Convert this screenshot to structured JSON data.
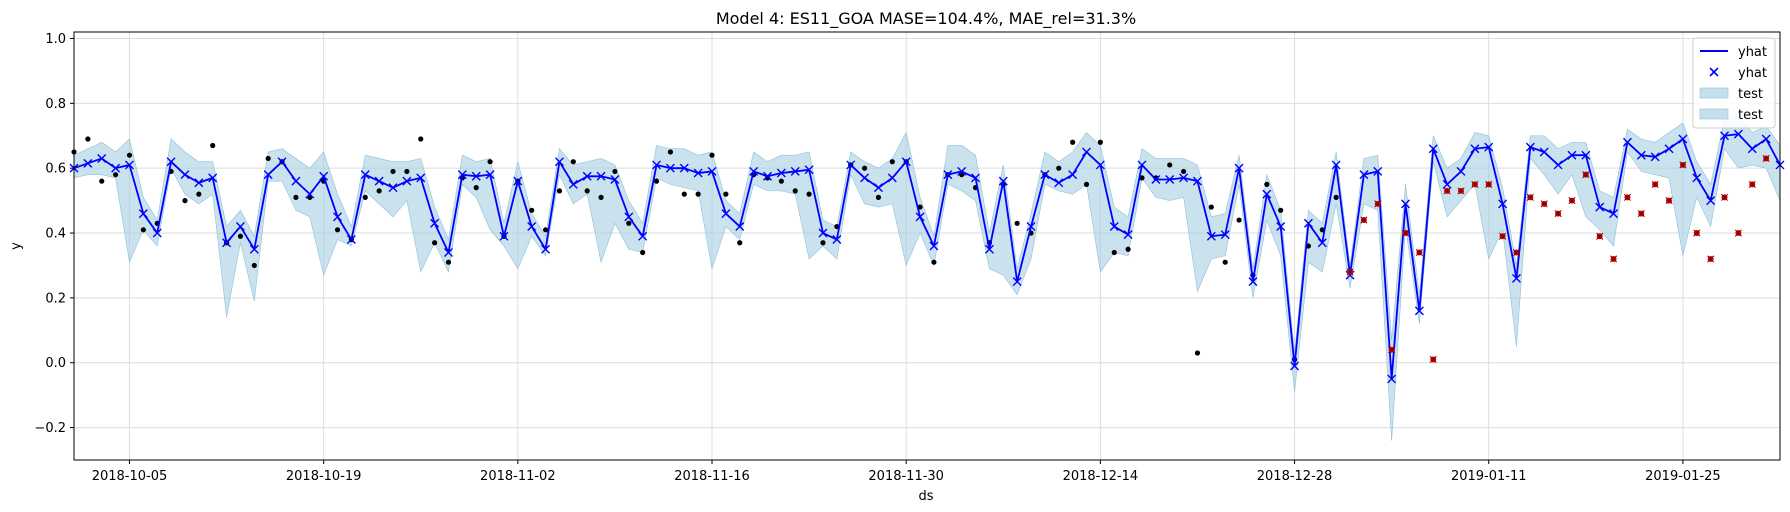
{
  "chart_data": {
    "type": "line",
    "title": "Model 4: ES11_GOA MASE=104.4%, MAE_rel=31.3%",
    "xlabel": "ds",
    "ylabel": "y",
    "x_start": "2018-10-01",
    "x_end": "2019-02-01",
    "ylim": [
      -0.3,
      1.02
    ],
    "yticks": [
      -0.2,
      0.0,
      0.2,
      0.4,
      0.6,
      0.8,
      1.0
    ],
    "ytick_labels": [
      "−0.2",
      "0.0",
      "0.2",
      "0.4",
      "0.6",
      "0.8",
      "1.0"
    ],
    "xticks": [
      "2018-10-05",
      "2018-10-19",
      "2018-11-02",
      "2018-11-16",
      "2018-11-30",
      "2018-12-14",
      "2018-12-28",
      "2019-01-11",
      "2019-01-25"
    ],
    "xtick_labels": [
      "2018-10-05",
      "2018-10-19",
      "2018-11-02",
      "2018-11-16",
      "2018-11-30",
      "2018-12-14",
      "2018-12-28",
      "2019-01-11",
      "2019-01-25"
    ],
    "grid": true,
    "legend_position": "top-right",
    "legend": [
      {
        "label": "yhat",
        "kind": "line",
        "color": "#0000ff"
      },
      {
        "label": "yhat",
        "kind": "marker-x",
        "color": "#0000ff"
      },
      {
        "label": "test",
        "kind": "band",
        "color": "#a6cee3"
      },
      {
        "label": "test",
        "kind": "band",
        "color": "#a6cee3"
      }
    ],
    "colors": {
      "forecast": "#0000ff",
      "band": "#a6cee3",
      "actual": "#000000",
      "test_points": "#cc0000"
    },
    "series": [
      {
        "name": "yhat",
        "type": "line",
        "x": [
          "2018-10-01",
          "2018-10-02",
          "2018-10-03",
          "2018-10-04",
          "2018-10-05",
          "2018-10-06",
          "2018-10-07",
          "2018-10-08",
          "2018-10-09",
          "2018-10-10",
          "2018-10-11",
          "2018-10-12",
          "2018-10-13",
          "2018-10-14",
          "2018-10-15",
          "2018-10-16",
          "2018-10-17",
          "2018-10-18",
          "2018-10-19",
          "2018-10-20",
          "2018-10-21",
          "2018-10-22",
          "2018-10-23",
          "2018-10-24",
          "2018-10-25",
          "2018-10-26",
          "2018-10-27",
          "2018-10-28",
          "2018-10-29",
          "2018-10-30",
          "2018-10-31",
          "2018-11-01",
          "2018-11-02",
          "2018-11-03",
          "2018-11-04",
          "2018-11-05",
          "2018-11-06",
          "2018-11-07",
          "2018-11-08",
          "2018-11-09",
          "2018-11-10",
          "2018-11-11",
          "2018-11-12",
          "2018-11-13",
          "2018-11-14",
          "2018-11-15",
          "2018-11-16",
          "2018-11-17",
          "2018-11-18",
          "2018-11-19",
          "2018-11-20",
          "2018-11-21",
          "2018-11-22",
          "2018-11-23",
          "2018-11-24",
          "2018-11-25",
          "2018-11-26",
          "2018-11-27",
          "2018-11-28",
          "2018-11-29",
          "2018-11-30",
          "2018-12-01",
          "2018-12-02",
          "2018-12-03",
          "2018-12-04",
          "2018-12-05",
          "2018-12-06",
          "2018-12-07",
          "2018-12-08",
          "2018-12-09",
          "2018-12-10",
          "2018-12-11",
          "2018-12-12",
          "2018-12-13",
          "2018-12-14",
          "2018-12-15",
          "2018-12-16",
          "2018-12-17",
          "2018-12-18",
          "2018-12-19",
          "2018-12-20",
          "2018-12-21",
          "2018-12-22",
          "2018-12-23",
          "2018-12-24",
          "2018-12-25",
          "2018-12-26",
          "2018-12-27",
          "2018-12-28",
          "2018-12-29",
          "2018-12-30",
          "2018-12-31",
          "2019-01-01",
          "2019-01-02",
          "2019-01-03",
          "2019-01-04",
          "2019-01-05",
          "2019-01-06",
          "2019-01-07",
          "2019-01-08",
          "2019-01-09",
          "2019-01-10",
          "2019-01-11",
          "2019-01-12",
          "2019-01-13",
          "2019-01-14",
          "2019-01-15",
          "2019-01-16",
          "2019-01-17",
          "2019-01-18",
          "2019-01-19",
          "2019-01-20",
          "2019-01-21",
          "2019-01-22",
          "2019-01-23",
          "2019-01-24",
          "2019-01-25",
          "2019-01-26",
          "2019-01-27",
          "2019-01-28",
          "2019-01-29",
          "2019-01-30",
          "2019-01-31",
          "2019-02-01"
        ],
        "values": [
          0.6,
          0.615,
          0.63,
          0.6,
          0.61,
          0.46,
          0.4,
          0.62,
          0.58,
          0.555,
          0.57,
          0.37,
          0.42,
          0.35,
          0.58,
          0.62,
          0.56,
          0.52,
          0.575,
          0.45,
          0.38,
          0.58,
          0.56,
          0.54,
          0.56,
          0.57,
          0.43,
          0.34,
          0.58,
          0.575,
          0.58,
          0.39,
          0.56,
          0.42,
          0.35,
          0.62,
          0.55,
          0.575,
          0.575,
          0.565,
          0.45,
          0.39,
          0.61,
          0.6,
          0.6,
          0.585,
          0.59,
          0.46,
          0.42,
          0.59,
          0.575,
          0.585,
          0.59,
          0.595,
          0.4,
          0.38,
          0.61,
          0.57,
          0.54,
          0.57,
          0.62,
          0.45,
          0.36,
          0.58,
          0.59,
          0.57,
          0.35,
          0.56,
          0.25,
          0.42,
          0.58,
          0.555,
          0.58,
          0.65,
          0.61,
          0.42,
          0.395,
          0.61,
          0.565,
          0.565,
          0.57,
          0.56,
          0.39,
          0.395,
          0.6,
          0.25,
          0.52,
          0.42,
          -0.01,
          0.43,
          0.37,
          0.61,
          0.27,
          0.58,
          0.59,
          -0.05,
          0.49,
          0.16,
          0.66,
          0.55,
          0.59,
          0.66,
          0.665,
          0.49,
          0.26,
          0.665,
          0.65,
          0.61,
          0.64,
          0.64,
          0.48,
          0.46,
          0.68,
          0.64,
          0.635,
          0.66,
          0.69,
          0.57,
          0.5,
          0.7,
          0.705,
          0.66,
          0.69,
          0.61
        ]
      },
      {
        "name": "test",
        "type": "band",
        "x_from": "2018-10-01",
        "lower": [
          0.57,
          0.58,
          0.58,
          0.57,
          0.31,
          0.41,
          0.36,
          0.6,
          0.52,
          0.49,
          0.52,
          0.14,
          0.37,
          0.19,
          0.56,
          0.56,
          0.47,
          0.45,
          0.27,
          0.38,
          0.36,
          0.53,
          0.49,
          0.45,
          0.5,
          0.28,
          0.37,
          0.28,
          0.55,
          0.51,
          0.41,
          0.36,
          0.29,
          0.39,
          0.33,
          0.58,
          0.49,
          0.52,
          0.31,
          0.43,
          0.35,
          0.34,
          0.57,
          0.55,
          0.54,
          0.53,
          0.29,
          0.42,
          0.38,
          0.55,
          0.53,
          0.53,
          0.52,
          0.32,
          0.36,
          0.32,
          0.58,
          0.49,
          0.48,
          0.49,
          0.3,
          0.4,
          0.3,
          0.55,
          0.53,
          0.5,
          0.29,
          0.27,
          0.21,
          0.32,
          0.55,
          0.53,
          0.52,
          0.55,
          0.28,
          0.34,
          0.33,
          0.57,
          0.51,
          0.5,
          0.51,
          0.22,
          0.32,
          0.33,
          0.55,
          0.2,
          0.44,
          0.33,
          -0.09,
          0.31,
          0.28,
          0.49,
          0.23,
          0.49,
          0.47,
          -0.24,
          0.42,
          0.12,
          0.62,
          0.45,
          0.5,
          0.55,
          0.32,
          0.41,
          0.05,
          0.63,
          0.58,
          0.52,
          0.58,
          0.45,
          0.41,
          0.36,
          0.65,
          0.59,
          0.58,
          0.57,
          0.33,
          0.51,
          0.42,
          0.66,
          0.6,
          0.61,
          0.6,
          0.5
        ],
        "upper": [
          0.64,
          0.66,
          0.68,
          0.65,
          0.69,
          0.51,
          0.44,
          0.69,
          0.65,
          0.62,
          0.62,
          0.42,
          0.47,
          0.39,
          0.65,
          0.66,
          0.63,
          0.6,
          0.65,
          0.52,
          0.42,
          0.64,
          0.63,
          0.62,
          0.62,
          0.63,
          0.48,
          0.38,
          0.64,
          0.62,
          0.63,
          0.43,
          0.62,
          0.46,
          0.39,
          0.66,
          0.61,
          0.62,
          0.63,
          0.61,
          0.5,
          0.43,
          0.67,
          0.66,
          0.66,
          0.64,
          0.65,
          0.5,
          0.46,
          0.65,
          0.62,
          0.64,
          0.64,
          0.65,
          0.44,
          0.42,
          0.65,
          0.62,
          0.6,
          0.63,
          0.71,
          0.51,
          0.39,
          0.67,
          0.67,
          0.64,
          0.4,
          0.61,
          0.29,
          0.46,
          0.65,
          0.62,
          0.65,
          0.71,
          0.67,
          0.48,
          0.45,
          0.66,
          0.63,
          0.63,
          0.63,
          0.61,
          0.45,
          0.46,
          0.64,
          0.29,
          0.58,
          0.47,
          0.03,
          0.47,
          0.43,
          0.65,
          0.3,
          0.63,
          0.64,
          0.07,
          0.55,
          0.21,
          0.7,
          0.6,
          0.63,
          0.71,
          0.7,
          0.54,
          0.3,
          0.7,
          0.7,
          0.66,
          0.68,
          0.68,
          0.53,
          0.51,
          0.72,
          0.69,
          0.68,
          0.71,
          0.74,
          0.62,
          0.55,
          0.75,
          0.76,
          0.71,
          0.73,
          0.67
        ]
      },
      {
        "name": "actual",
        "type": "scatter",
        "points": [
          [
            "2018-10-01",
            0.65
          ],
          [
            "2018-10-02",
            0.69
          ],
          [
            "2018-10-03",
            0.56
          ],
          [
            "2018-10-04",
            0.58
          ],
          [
            "2018-10-05",
            0.64
          ],
          [
            "2018-10-06",
            0.41
          ],
          [
            "2018-10-07",
            0.43
          ],
          [
            "2018-10-08",
            0.59
          ],
          [
            "2018-10-09",
            0.5
          ],
          [
            "2018-10-10",
            0.52
          ],
          [
            "2018-10-11",
            0.67
          ],
          [
            "2018-10-12",
            0.37
          ],
          [
            "2018-10-13",
            0.39
          ],
          [
            "2018-10-14",
            0.3
          ],
          [
            "2018-10-15",
            0.63
          ],
          [
            "2018-10-16",
            0.62
          ],
          [
            "2018-10-17",
            0.51
          ],
          [
            "2018-10-18",
            0.51
          ],
          [
            "2018-10-19",
            0.56
          ],
          [
            "2018-10-20",
            0.41
          ],
          [
            "2018-10-21",
            0.38
          ],
          [
            "2018-10-22",
            0.51
          ],
          [
            "2018-10-23",
            0.53
          ],
          [
            "2018-10-24",
            0.59
          ],
          [
            "2018-10-25",
            0.59
          ],
          [
            "2018-10-26",
            0.69
          ],
          [
            "2018-10-27",
            0.37
          ],
          [
            "2018-10-28",
            0.31
          ],
          [
            "2018-10-29",
            0.57
          ],
          [
            "2018-10-30",
            0.54
          ],
          [
            "2018-10-31",
            0.62
          ],
          [
            "2018-11-01",
            0.39
          ],
          [
            "2018-11-02",
            0.56
          ],
          [
            "2018-11-03",
            0.47
          ],
          [
            "2018-11-04",
            0.41
          ],
          [
            "2018-11-05",
            0.53
          ],
          [
            "2018-11-06",
            0.62
          ],
          [
            "2018-11-07",
            0.53
          ],
          [
            "2018-11-08",
            0.51
          ],
          [
            "2018-11-09",
            0.59
          ],
          [
            "2018-11-10",
            0.43
          ],
          [
            "2018-11-11",
            0.34
          ],
          [
            "2018-11-12",
            0.56
          ],
          [
            "2018-11-13",
            0.65
          ],
          [
            "2018-11-14",
            0.52
          ],
          [
            "2018-11-15",
            0.52
          ],
          [
            "2018-11-16",
            0.64
          ],
          [
            "2018-11-17",
            0.52
          ],
          [
            "2018-11-18",
            0.37
          ],
          [
            "2018-11-19",
            0.58
          ],
          [
            "2018-11-20",
            0.57
          ],
          [
            "2018-11-21",
            0.56
          ],
          [
            "2018-11-22",
            0.53
          ],
          [
            "2018-11-23",
            0.52
          ],
          [
            "2018-11-24",
            0.37
          ],
          [
            "2018-11-25",
            0.42
          ],
          [
            "2018-11-26",
            0.61
          ],
          [
            "2018-11-27",
            0.6
          ],
          [
            "2018-11-28",
            0.51
          ],
          [
            "2018-11-29",
            0.62
          ],
          [
            "2018-11-30",
            0.62
          ],
          [
            "2018-12-01",
            0.48
          ],
          [
            "2018-12-02",
            0.31
          ],
          [
            "2018-12-03",
            0.58
          ],
          [
            "2018-12-04",
            0.58
          ],
          [
            "2018-12-05",
            0.54
          ],
          [
            "2018-12-06",
            0.37
          ],
          [
            "2018-12-07",
            0.55
          ],
          [
            "2018-12-08",
            0.43
          ],
          [
            "2018-12-09",
            0.4
          ],
          [
            "2018-12-10",
            0.58
          ],
          [
            "2018-12-11",
            0.6
          ],
          [
            "2018-12-12",
            0.68
          ],
          [
            "2018-12-13",
            0.55
          ],
          [
            "2018-12-14",
            0.68
          ],
          [
            "2018-12-15",
            0.34
          ],
          [
            "2018-12-16",
            0.35
          ],
          [
            "2018-12-17",
            0.57
          ],
          [
            "2018-12-18",
            0.57
          ],
          [
            "2018-12-19",
            0.61
          ],
          [
            "2018-12-20",
            0.59
          ],
          [
            "2018-12-21",
            0.03
          ],
          [
            "2018-12-22",
            0.48
          ],
          [
            "2018-12-23",
            0.31
          ],
          [
            "2018-12-24",
            0.44
          ],
          [
            "2018-12-25",
            0.27
          ],
          [
            "2018-12-26",
            0.55
          ],
          [
            "2018-12-27",
            0.47
          ],
          [
            "2018-12-28",
            0.01
          ],
          [
            "2018-12-29",
            0.36
          ],
          [
            "2018-12-30",
            0.41
          ],
          [
            "2018-12-31",
            0.51
          ]
        ]
      },
      {
        "name": "test_points",
        "type": "scatter",
        "points": [
          [
            "2019-01-01",
            0.28
          ],
          [
            "2019-01-02",
            0.44
          ],
          [
            "2019-01-03",
            0.49
          ],
          [
            "2019-01-04",
            0.04
          ],
          [
            "2019-01-05",
            0.4
          ],
          [
            "2019-01-06",
            0.34
          ],
          [
            "2019-01-07",
            0.01
          ],
          [
            "2019-01-08",
            0.53
          ],
          [
            "2019-01-09",
            0.53
          ],
          [
            "2019-01-10",
            0.55
          ],
          [
            "2019-01-11",
            0.55
          ],
          [
            "2019-01-12",
            0.39
          ],
          [
            "2019-01-13",
            0.34
          ],
          [
            "2019-01-14",
            0.51
          ],
          [
            "2019-01-15",
            0.49
          ],
          [
            "2019-01-16",
            0.46
          ],
          [
            "2019-01-17",
            0.5
          ],
          [
            "2019-01-18",
            0.58
          ],
          [
            "2019-01-19",
            0.39
          ],
          [
            "2019-01-20",
            0.32
          ],
          [
            "2019-01-21",
            0.51
          ],
          [
            "2019-01-22",
            0.46
          ],
          [
            "2019-01-23",
            0.55
          ],
          [
            "2019-01-24",
            0.5
          ],
          [
            "2019-01-25",
            0.61
          ],
          [
            "2019-01-26",
            0.4
          ],
          [
            "2019-01-27",
            0.32
          ],
          [
            "2019-01-28",
            0.51
          ],
          [
            "2019-01-29",
            0.4
          ],
          [
            "2019-01-30",
            0.55
          ],
          [
            "2019-01-31",
            0.63
          ]
        ]
      }
    ]
  }
}
